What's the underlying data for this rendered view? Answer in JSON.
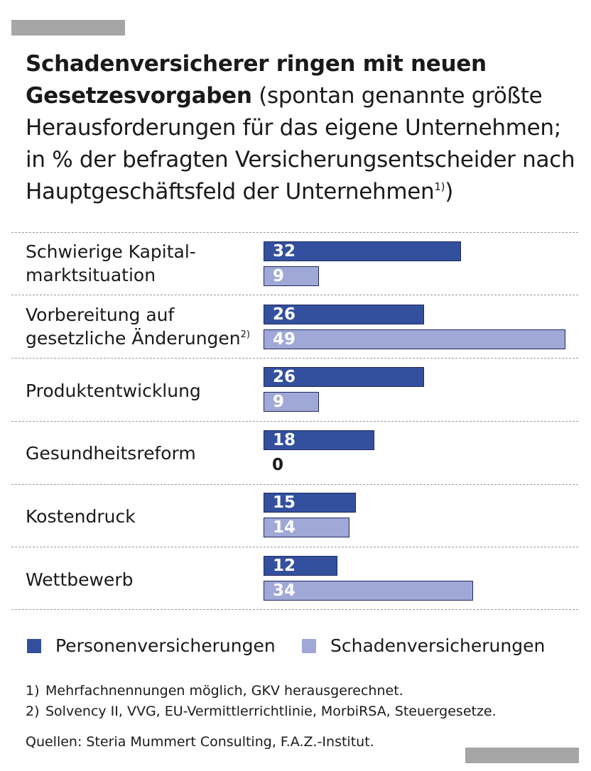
{
  "title": {
    "bold": "Schadenversicherer ringen mit neuen Gesetzesvorgaben",
    "rest": "(spontan genannte größte Herausforderungen für das eigene Unternehmen; in % der befragten Versicherungsentscheider nach Hauptgeschäftsfeld der Unternehmen",
    "sup": "1)",
    "close": ")"
  },
  "chart_data": {
    "type": "bar",
    "orientation": "horizontal",
    "title": "Schadenversicherer ringen mit neuen Gesetzesvorgaben",
    "categories": [
      "Schwierige Kapital-marktsituation",
      "Vorbereitung auf gesetzliche Änderungen",
      "Produktentwicklung",
      "Gesundheitsreform",
      "Kostendruck",
      "Wettbewerb"
    ],
    "category_lines": [
      [
        "Schwierige Kapital-",
        "marktsituation"
      ],
      [
        "Vorbereitung auf",
        "gesetzliche Änderungen"
      ],
      [
        "Produktentwicklung"
      ],
      [
        "Gesundheitsreform"
      ],
      [
        "Kostendruck"
      ],
      [
        "Wettbewerb"
      ]
    ],
    "category_sup": [
      "",
      "2)",
      "",
      "",
      "",
      ""
    ],
    "series": [
      {
        "name": "Personenversicherungen",
        "color": "#33509e",
        "values": [
          32,
          26,
          26,
          18,
          15,
          12
        ]
      },
      {
        "name": "Schadenversicherungen",
        "color": "#9fa8d6",
        "values": [
          9,
          49,
          9,
          0,
          14,
          34
        ]
      }
    ],
    "xlim": [
      0,
      49
    ],
    "grid": false,
    "legend": "bottom"
  },
  "legend": {
    "items": [
      {
        "label": "Personenversicherungen",
        "color": "#33509e"
      },
      {
        "label": "Schadenversicherungen",
        "color": "#9fa8d6"
      }
    ]
  },
  "notes": [
    {
      "num": "1)",
      "text": "Mehrfachnennungen möglich, GKV herausgerechnet."
    },
    {
      "num": "2)",
      "text": "Solvency II, VVG, EU-Vermittlerrichtlinie, MorbiRSA, Steuergesetze."
    }
  ],
  "source": "Quellen: Steria Mummert Consulting, F.A.Z.-Institut."
}
